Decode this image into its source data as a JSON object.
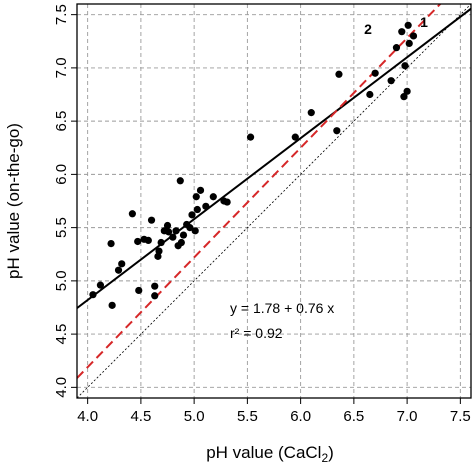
{
  "chart_data": {
    "type": "scatter",
    "title": "",
    "xlabel": "pH value (CaCl",
    "xlabel_sub": "2",
    "xlabel_close": ")",
    "ylabel": "pH value (on-the-go)",
    "xlim": [
      3.9,
      7.6
    ],
    "ylim": [
      3.9,
      7.6
    ],
    "xticks": [
      "4.0",
      "4.5",
      "5.0",
      "5.5",
      "6.0",
      "6.5",
      "7.0",
      "7.5"
    ],
    "yticks": [
      "4.0",
      "4.5",
      "5.0",
      "5.5",
      "6.0",
      "6.5",
      "7.0",
      "7.5"
    ],
    "tick_values": [
      4.0,
      4.5,
      5.0,
      5.5,
      6.0,
      6.5,
      7.0,
      7.5
    ],
    "grid": true,
    "points": [
      {
        "x": 4.05,
        "y": 4.87
      },
      {
        "x": 4.12,
        "y": 4.96
      },
      {
        "x": 4.22,
        "y": 5.35
      },
      {
        "x": 4.23,
        "y": 4.77
      },
      {
        "x": 4.29,
        "y": 5.1
      },
      {
        "x": 4.32,
        "y": 5.16
      },
      {
        "x": 4.42,
        "y": 5.63
      },
      {
        "x": 4.47,
        "y": 5.37
      },
      {
        "x": 4.48,
        "y": 4.91
      },
      {
        "x": 4.53,
        "y": 5.39
      },
      {
        "x": 4.57,
        "y": 5.38
      },
      {
        "x": 4.6,
        "y": 5.57
      },
      {
        "x": 4.63,
        "y": 4.95
      },
      {
        "x": 4.63,
        "y": 4.86
      },
      {
        "x": 4.66,
        "y": 5.23
      },
      {
        "x": 4.67,
        "y": 5.28
      },
      {
        "x": 4.69,
        "y": 5.36
      },
      {
        "x": 4.72,
        "y": 5.47
      },
      {
        "x": 4.75,
        "y": 5.52
      },
      {
        "x": 4.76,
        "y": 5.46
      },
      {
        "x": 4.8,
        "y": 5.41
      },
      {
        "x": 4.83,
        "y": 5.47
      },
      {
        "x": 4.85,
        "y": 5.33
      },
      {
        "x": 4.87,
        "y": 5.94
      },
      {
        "x": 4.88,
        "y": 5.36
      },
      {
        "x": 4.9,
        "y": 5.43
      },
      {
        "x": 4.93,
        "y": 5.53
      },
      {
        "x": 4.96,
        "y": 5.5
      },
      {
        "x": 4.98,
        "y": 5.62
      },
      {
        "x": 5.01,
        "y": 5.47
      },
      {
        "x": 5.02,
        "y": 5.79
      },
      {
        "x": 5.03,
        "y": 5.67
      },
      {
        "x": 5.06,
        "y": 5.85
      },
      {
        "x": 5.11,
        "y": 5.7
      },
      {
        "x": 5.18,
        "y": 5.79
      },
      {
        "x": 5.28,
        "y": 5.75
      },
      {
        "x": 5.31,
        "y": 5.74
      },
      {
        "x": 5.53,
        "y": 6.35
      },
      {
        "x": 5.95,
        "y": 6.35
      },
      {
        "x": 6.1,
        "y": 6.58
      },
      {
        "x": 6.34,
        "y": 6.41
      },
      {
        "x": 6.36,
        "y": 6.94
      },
      {
        "x": 6.65,
        "y": 6.75
      },
      {
        "x": 6.7,
        "y": 6.95
      },
      {
        "x": 6.85,
        "y": 6.88
      },
      {
        "x": 6.9,
        "y": 7.19
      },
      {
        "x": 6.95,
        "y": 7.34
      },
      {
        "x": 6.97,
        "y": 6.73
      },
      {
        "x": 6.98,
        "y": 7.02
      },
      {
        "x": 7.0,
        "y": 6.78
      },
      {
        "x": 7.01,
        "y": 7.4
      },
      {
        "x": 7.02,
        "y": 7.23
      },
      {
        "x": 7.06,
        "y": 7.3
      }
    ],
    "lines": [
      {
        "label": "1",
        "style": "solid",
        "color": "#000000",
        "intercept": 1.78,
        "slope": 0.76
      },
      {
        "label": "2",
        "style": "dashed",
        "color": "#d62728",
        "intercept": 0.07,
        "slope": 1.03
      },
      {
        "label": "",
        "style": "dotted",
        "color": "#000000",
        "intercept": 0,
        "slope": 1
      }
    ],
    "annotations": {
      "equation": "y = 1.78 + 0.76 x",
      "r2": "r² = 0.92"
    }
  }
}
